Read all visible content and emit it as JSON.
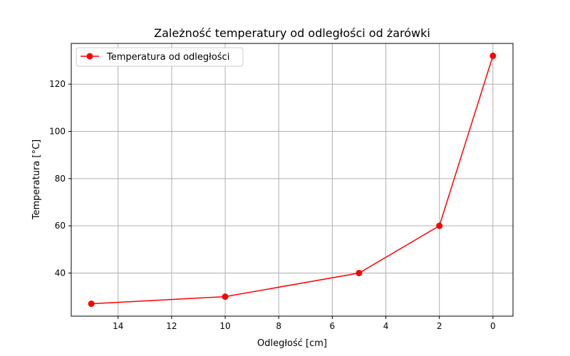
{
  "chart_data": {
    "type": "line",
    "title": "Zależność temperatury od odległości od żarówki",
    "xlabel": "Odległość [cm]",
    "ylabel": "Temperatura [°C]",
    "x_inverted": true,
    "xlim": [
      15.75,
      -0.75
    ],
    "ylim": [
      21.75,
      137.25
    ],
    "x_ticks": [
      14,
      12,
      10,
      8,
      6,
      4,
      2,
      0
    ],
    "y_ticks": [
      40,
      60,
      80,
      100,
      120
    ],
    "grid": true,
    "legend_position": "top-left",
    "series": [
      {
        "name": "Temperatura od odległości",
        "color": "#ff0000",
        "marker": "circle",
        "x": [
          15,
          10,
          5,
          2,
          0
        ],
        "y": [
          27,
          30,
          40,
          60,
          132
        ]
      }
    ]
  }
}
